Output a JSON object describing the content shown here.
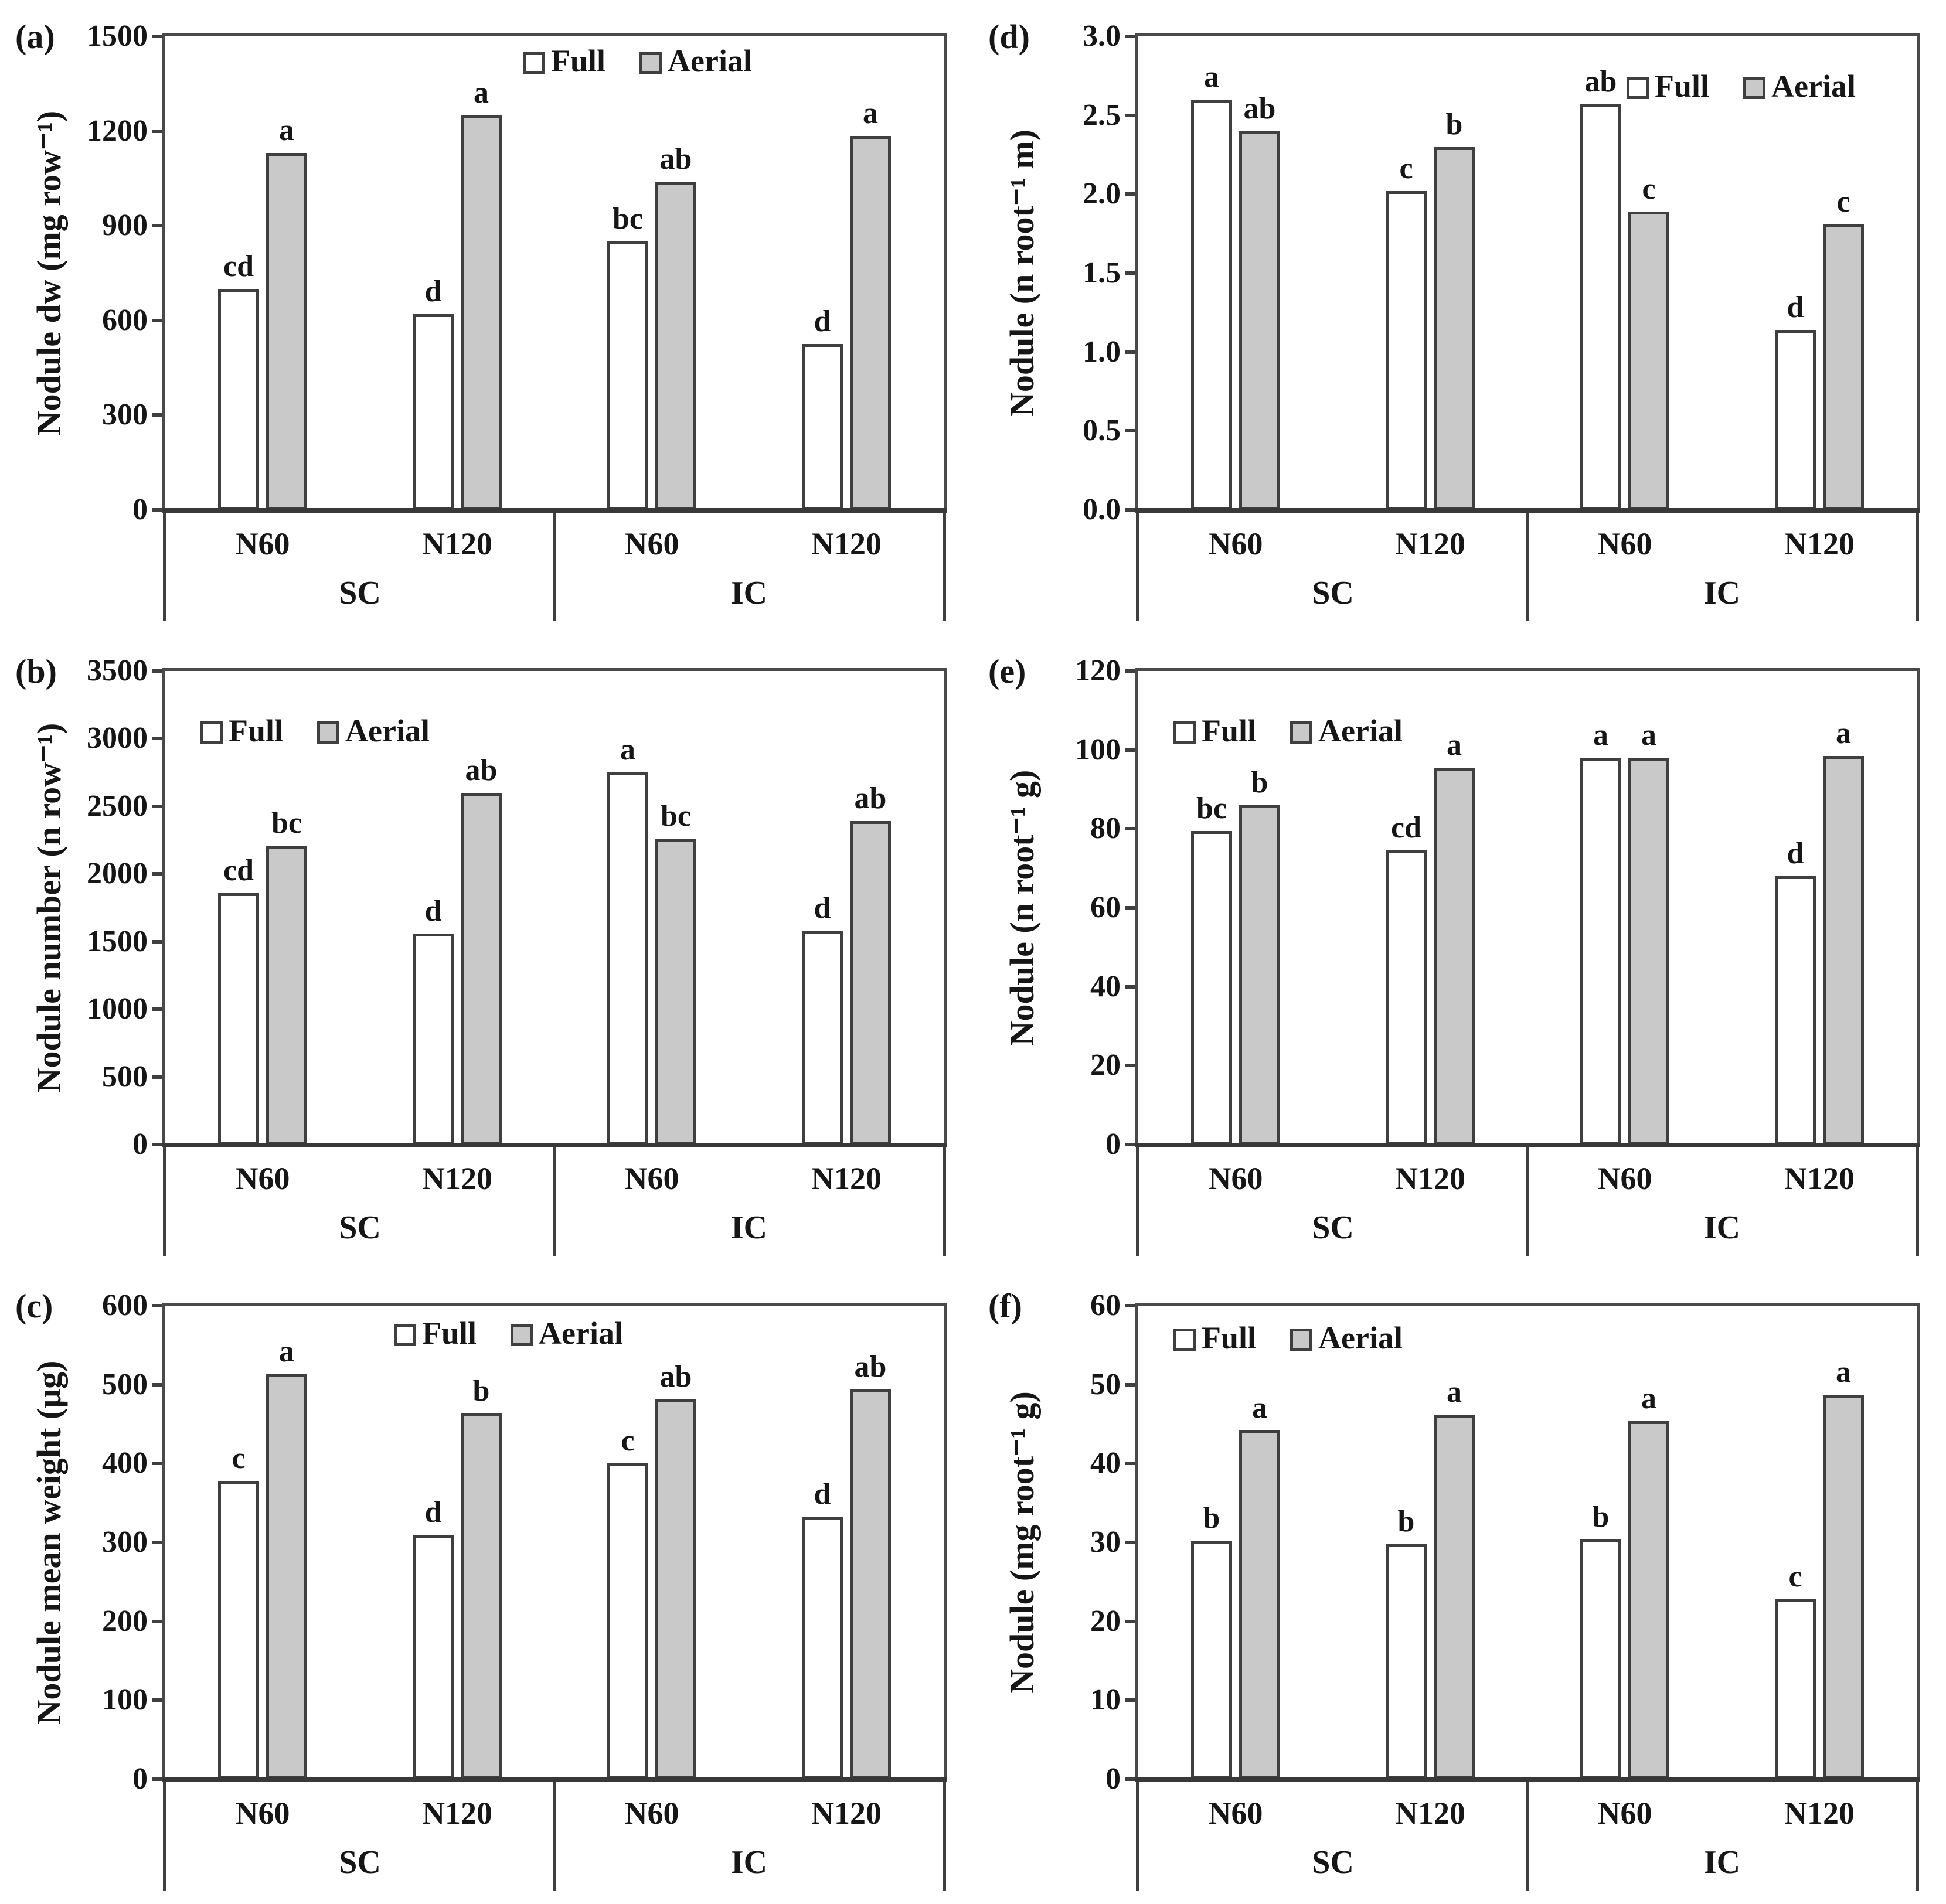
{
  "colors": {
    "bar_full_fill": "#ffffff",
    "bar_aerial_fill": "#c9c9c9",
    "bar_border": "#3f3f3f",
    "axis": "#3f3f3f",
    "text": "#161616"
  },
  "chart_data": [
    {
      "panel_label": "(a)",
      "type": "bar",
      "ylabel": "Nodule dw (mg row⁻¹)",
      "ylim": [
        0,
        1500
      ],
      "yticks": [
        0,
        300,
        600,
        900,
        1200,
        1500
      ],
      "ytick_labels": [
        "0",
        "300",
        "600",
        "900",
        "1200",
        "1500"
      ],
      "group_labels": [
        "SC",
        "IC"
      ],
      "categories": [
        "N60",
        "N120",
        "N60",
        "N120"
      ],
      "grid": false,
      "legend_position": "top-center-right",
      "series": [
        {
          "name": "Full",
          "values": [
            700,
            620,
            850,
            525
          ],
          "letters": [
            "cd",
            "d",
            "bc",
            "d"
          ]
        },
        {
          "name": "Aerial",
          "values": [
            1130,
            1250,
            1040,
            1185
          ],
          "letters": [
            "a",
            "a",
            "ab",
            "a"
          ]
        }
      ]
    },
    {
      "panel_label": "(b)",
      "type": "bar",
      "ylabel": "Nodule number (n row⁻¹)",
      "ylim": [
        0,
        3500
      ],
      "yticks": [
        0,
        500,
        1000,
        1500,
        2000,
        2500,
        3000,
        3500
      ],
      "ytick_labels": [
        "0",
        "500",
        "1000",
        "1500",
        "2000",
        "2500",
        "3000",
        "3500"
      ],
      "group_labels": [
        "SC",
        "IC"
      ],
      "categories": [
        "N60",
        "N120",
        "N60",
        "N120"
      ],
      "grid": false,
      "legend_position": "top-left-low",
      "series": [
        {
          "name": "Full",
          "values": [
            1860,
            1560,
            2750,
            1580
          ],
          "letters": [
            "cd",
            "d",
            "a",
            "d"
          ]
        },
        {
          "name": "Aerial",
          "values": [
            2210,
            2600,
            2260,
            2390
          ],
          "letters": [
            "bc",
            "ab",
            "bc",
            "ab"
          ]
        }
      ]
    },
    {
      "panel_label": "(c)",
      "type": "bar",
      "ylabel": "Nodule mean weight (μg)",
      "ylim": [
        0,
        600
      ],
      "yticks": [
        0,
        100,
        200,
        300,
        400,
        500,
        600
      ],
      "ytick_labels": [
        "0",
        "100",
        "200",
        "300",
        "400",
        "500",
        "600"
      ],
      "group_labels": [
        "SC",
        "IC"
      ],
      "categories": [
        "N60",
        "N120",
        "N60",
        "N120"
      ],
      "grid": false,
      "legend_position": "top-center",
      "series": [
        {
          "name": "Full",
          "values": [
            378,
            310,
            400,
            333
          ],
          "letters": [
            "c",
            "d",
            "c",
            "d"
          ]
        },
        {
          "name": "Aerial",
          "values": [
            513,
            463,
            481,
            494
          ],
          "letters": [
            "a",
            "b",
            "ab",
            "ab"
          ]
        }
      ]
    },
    {
      "panel_label": "(d)",
      "type": "bar",
      "ylabel": "Nodule (n root⁻¹ m)",
      "ylim": [
        0,
        3.0
      ],
      "yticks": [
        0,
        0.5,
        1.0,
        1.5,
        2.0,
        2.5,
        3.0
      ],
      "ytick_labels": [
        "0.0",
        "0.5",
        "1.0",
        "1.5",
        "2.0",
        "2.5",
        "3.0"
      ],
      "group_labels": [
        "SC",
        "IC"
      ],
      "categories": [
        "N60",
        "N120",
        "N60",
        "N120"
      ],
      "grid": false,
      "legend_position": "top-right",
      "series": [
        {
          "name": "Full",
          "values": [
            2.6,
            2.02,
            2.57,
            1.14
          ],
          "letters": [
            "a",
            "c",
            "ab",
            "d"
          ]
        },
        {
          "name": "Aerial",
          "values": [
            2.4,
            2.3,
            1.89,
            1.81
          ],
          "letters": [
            "ab",
            "b",
            "c",
            "c"
          ]
        }
      ]
    },
    {
      "panel_label": "(e)",
      "type": "bar",
      "ylabel": "Nodule (n root⁻¹ g)",
      "ylim": [
        0,
        120
      ],
      "yticks": [
        0,
        20,
        40,
        60,
        80,
        100,
        120
      ],
      "ytick_labels": [
        "0",
        "20",
        "40",
        "60",
        "80",
        "100",
        "120"
      ],
      "group_labels": [
        "SC",
        "IC"
      ],
      "categories": [
        "N60",
        "N120",
        "N60",
        "N120"
      ],
      "grid": false,
      "legend_position": "top-left-low",
      "series": [
        {
          "name": "Full",
          "values": [
            79.5,
            74.5,
            98,
            68
          ],
          "letters": [
            "bc",
            "cd",
            "a",
            "d"
          ]
        },
        {
          "name": "Aerial",
          "values": [
            86,
            95.5,
            98,
            98.5
          ],
          "letters": [
            "b",
            "a",
            "a",
            "a"
          ]
        }
      ]
    },
    {
      "panel_label": "(f)",
      "type": "bar",
      "ylabel": "Nodule (mg root⁻¹ g)",
      "ylim": [
        0,
        60
      ],
      "yticks": [
        0,
        10,
        20,
        30,
        40,
        50,
        60
      ],
      "ytick_labels": [
        "0",
        "10",
        "20",
        "30",
        "40",
        "50",
        "60"
      ],
      "group_labels": [
        "SC",
        "IC"
      ],
      "categories": [
        "N60",
        "N120",
        "N60",
        "N120"
      ],
      "grid": false,
      "legend_position": "top-left",
      "series": [
        {
          "name": "Full",
          "values": [
            30.2,
            29.8,
            30.4,
            22.8
          ],
          "letters": [
            "b",
            "b",
            "b",
            "c"
          ]
        },
        {
          "name": "Aerial",
          "values": [
            44.2,
            46.2,
            45.4,
            48.7
          ],
          "letters": [
            "a",
            "a",
            "a",
            "a"
          ]
        }
      ]
    }
  ]
}
